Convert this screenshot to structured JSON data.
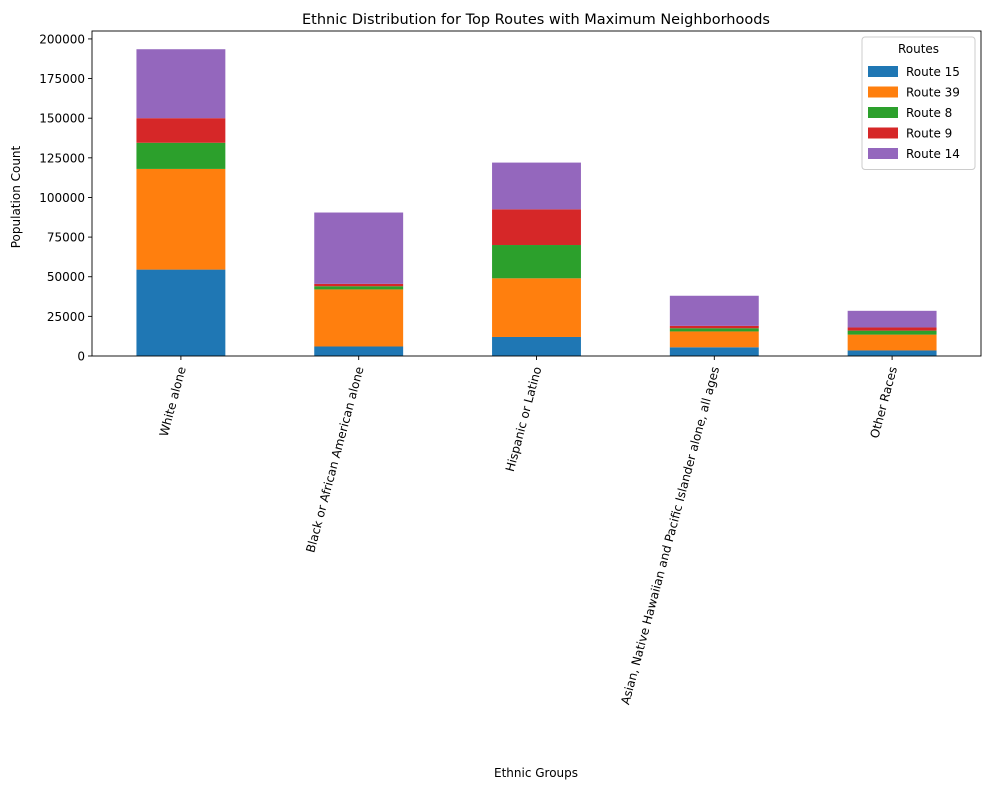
{
  "chart_data": {
    "type": "bar",
    "stacked": true,
    "title": "Ethnic Distribution for Top Routes with Maximum Neighborhoods",
    "xlabel": "Ethnic Groups",
    "ylabel": "Population Count",
    "ylim": [
      0,
      205000
    ],
    "yticks": [
      "0",
      "25000",
      "50000",
      "75000",
      "100000",
      "125000",
      "150000",
      "175000",
      "200000"
    ],
    "grid": false,
    "legend": {
      "title": "Routes",
      "placement": "top-right"
    },
    "categories": [
      "White alone",
      "Black or African American alone",
      "Hispanic or Latino",
      "Asian, Native Hawaiian and Pacific Islander alone, all ages",
      "Other Races"
    ],
    "series": [
      {
        "name": "Route 15",
        "color": "#1f77b4",
        "values": [
          54500,
          6000,
          12000,
          5500,
          3500
        ]
      },
      {
        "name": "Route 39",
        "color": "#ff7f0e",
        "values": [
          63500,
          36000,
          37000,
          10000,
          10000
        ]
      },
      {
        "name": "Route 8",
        "color": "#2ca02c",
        "values": [
          16500,
          2000,
          21000,
          2000,
          2500
        ]
      },
      {
        "name": "Route 9",
        "color": "#d62728",
        "values": [
          15500,
          1500,
          22500,
          1500,
          2000
        ]
      },
      {
        "name": "Route 14",
        "color": "#9467bd",
        "values": [
          43500,
          45000,
          29500,
          19000,
          10500
        ]
      }
    ]
  }
}
